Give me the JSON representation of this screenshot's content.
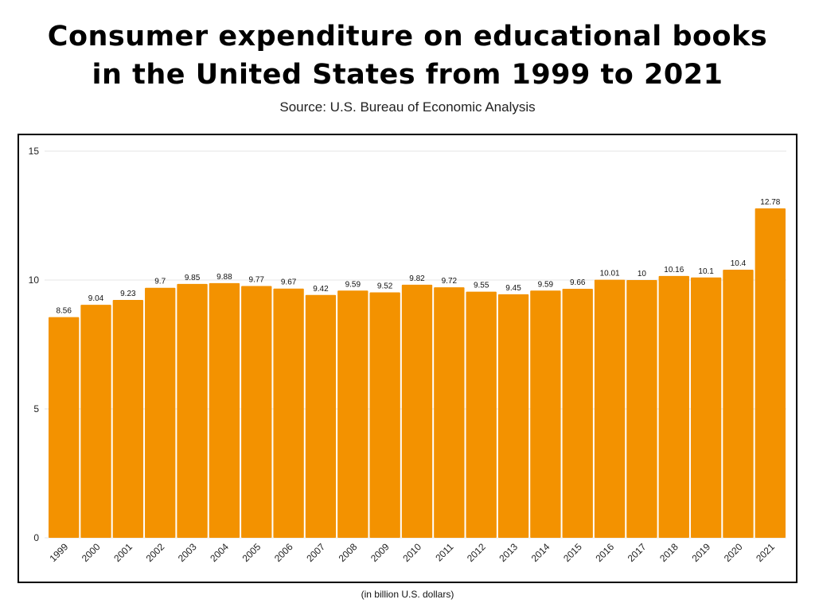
{
  "header": {
    "title_line1": "Consumer expenditure on educational books",
    "title_line2": "in the United States from 1999 to 2021",
    "subtitle": "Source: U.S. Bureau of Economic Analysis"
  },
  "footnote": "(in billion U.S. dollars)",
  "colors": {
    "bar": "#F39200",
    "grid": "#e6e6e6",
    "frame": "#000000"
  },
  "chart_data": {
    "type": "bar",
    "title": "Consumer expenditure on educational books in the United States from 1999 to 2021",
    "categories": [
      "1999",
      "2000",
      "2001",
      "2002",
      "2003",
      "2004",
      "2005",
      "2006",
      "2007",
      "2008",
      "2009",
      "2010",
      "2011",
      "2012",
      "2013",
      "2014",
      "2015",
      "2016",
      "2017",
      "2018",
      "2019",
      "2020",
      "2021"
    ],
    "values": [
      8.56,
      9.04,
      9.23,
      9.7,
      9.85,
      9.88,
      9.77,
      9.67,
      9.42,
      9.59,
      9.52,
      9.82,
      9.72,
      9.55,
      9.45,
      9.59,
      9.66,
      10.01,
      10,
      10.16,
      10.1,
      10.4,
      12.78
    ],
    "value_labels": [
      "8.56",
      "9.04",
      "9.23",
      "9.7",
      "9.85",
      "9.88",
      "9.77",
      "9.67",
      "9.42",
      "9.59",
      "9.52",
      "9.82",
      "9.72",
      "9.55",
      "9.45",
      "9.59",
      "9.66",
      "10.01",
      "10",
      "10.16",
      "10.1",
      "10.4",
      "12.78"
    ],
    "xlabel": "",
    "ylabel": "(in billion U.S. dollars)",
    "ylim": [
      0,
      15
    ],
    "yticks": [
      0,
      5,
      10,
      15
    ],
    "ytick_labels": [
      "0",
      "5",
      "10",
      "15"
    ],
    "grid": true,
    "legend": "none"
  }
}
